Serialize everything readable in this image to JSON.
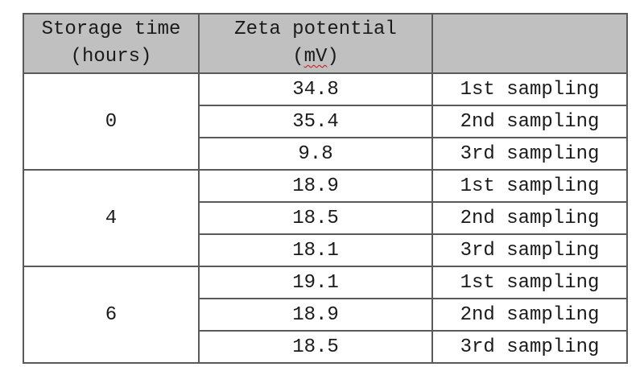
{
  "table": {
    "header": {
      "col1_line1": "Storage time",
      "col1_line2": "(hours)",
      "col2_line1": "Zeta potential",
      "col2_line2_open": "(",
      "col2_line2_word": "mV",
      "col2_line2_close": ")",
      "col3": ""
    },
    "groups": [
      {
        "storage_time": "0",
        "rows": [
          {
            "zeta": "34.8",
            "sampling": "1st sampling"
          },
          {
            "zeta": "35.4",
            "sampling": "2nd sampling"
          },
          {
            "zeta": "9.8",
            "sampling": "3rd sampling"
          }
        ]
      },
      {
        "storage_time": "4",
        "rows": [
          {
            "zeta": "18.9",
            "sampling": "1st sampling"
          },
          {
            "zeta": "18.5",
            "sampling": "2nd sampling"
          },
          {
            "zeta": "18.1",
            "sampling": "3rd sampling"
          }
        ]
      },
      {
        "storage_time": "6",
        "rows": [
          {
            "zeta": "19.1",
            "sampling": "1st sampling"
          },
          {
            "zeta": "18.9",
            "sampling": "2nd sampling"
          },
          {
            "zeta": "18.5",
            "sampling": "3rd sampling"
          }
        ]
      }
    ],
    "colors": {
      "header_bg": "#c0c0c0",
      "border": "#595959",
      "text": "#1a1a1a",
      "spellcheck_underline": "#cc1111"
    }
  }
}
